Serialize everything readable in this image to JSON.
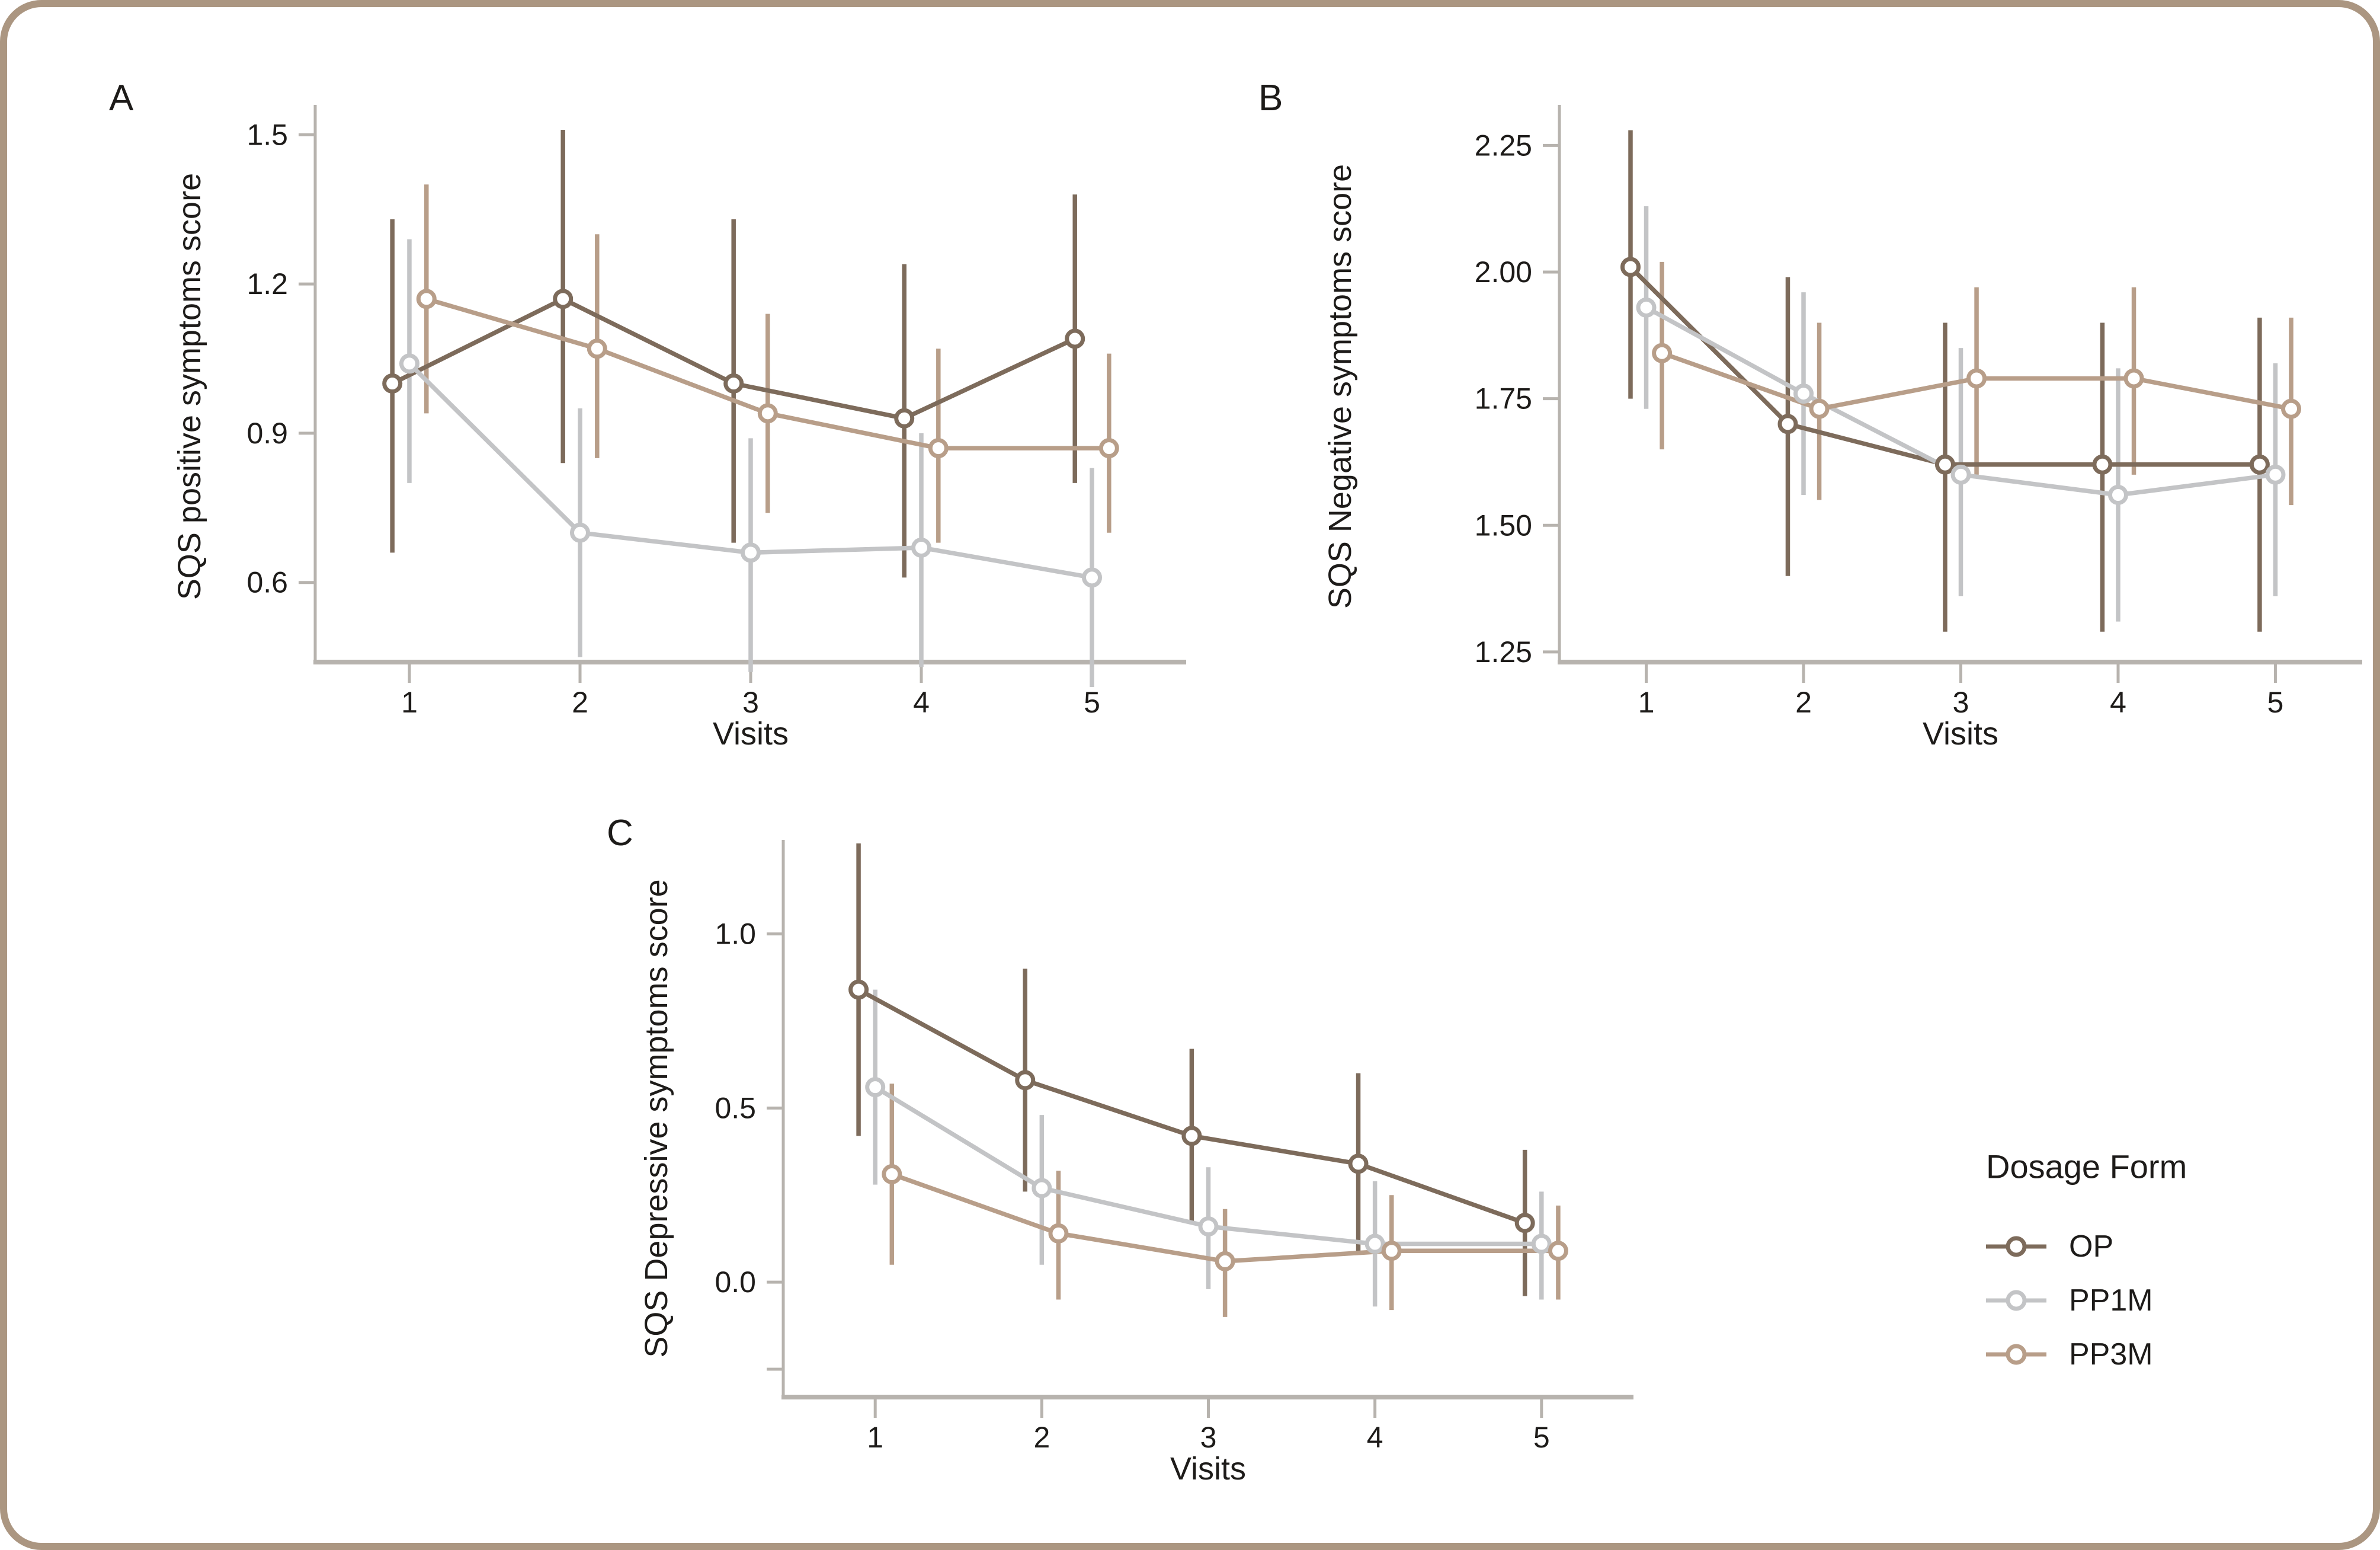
{
  "figure": {
    "border_color": "#ab9681",
    "background": "#ffffff"
  },
  "axis": {
    "line_color": "#b7b3ae",
    "text_color": "#1d1b19"
  },
  "legend": {
    "title": "Dosage Form",
    "position": "right-bottom",
    "items": [
      {
        "label": "OP",
        "color": "#7d6b5b",
        "marker": "open-circle"
      },
      {
        "label": "PP1M",
        "color": "#c3c4c6",
        "marker": "open-circle"
      },
      {
        "label": "PP3M",
        "color": "#b89e89",
        "marker": "open-circle"
      }
    ]
  },
  "chart_data": [
    {
      "type": "line",
      "panel_letter": "A",
      "ylabel": "SQS positive symptoms score",
      "xlabel": "Visits",
      "x": [
        1,
        2,
        3,
        4,
        5
      ],
      "xticklabels": [
        "1",
        "2",
        "3",
        "4",
        "5"
      ],
      "ylim": [
        0.44,
        1.56
      ],
      "yticks": [
        {
          "v": 1.5,
          "label": "1.5"
        },
        {
          "v": 1.2,
          "label": "1.2"
        },
        {
          "v": 0.9,
          "label": "0.9"
        },
        {
          "v": 0.6,
          "label": "0.6"
        }
      ],
      "grid": false,
      "error_bars": true,
      "series": [
        {
          "name": "OP",
          "mean": [
            1.0,
            1.17,
            1.0,
            0.93,
            1.09
          ],
          "lower": [
            0.66,
            0.84,
            0.68,
            0.61,
            0.8
          ],
          "upper": [
            1.33,
            1.51,
            1.33,
            1.24,
            1.38
          ]
        },
        {
          "name": "PP1M",
          "mean": [
            1.04,
            0.7,
            0.66,
            0.67,
            0.61
          ],
          "lower": [
            0.8,
            0.45,
            0.42,
            0.43,
            0.39
          ],
          "upper": [
            1.29,
            0.95,
            0.89,
            0.9,
            0.83
          ]
        },
        {
          "name": "PP3M",
          "mean": [
            1.17,
            1.07,
            0.94,
            0.87,
            0.87
          ],
          "lower": [
            0.94,
            0.85,
            0.74,
            0.68,
            0.7
          ],
          "upper": [
            1.4,
            1.3,
            1.14,
            1.07,
            1.06
          ]
        }
      ]
    },
    {
      "type": "line",
      "panel_letter": "B",
      "ylabel": "SQS Negative symptoms score",
      "xlabel": "Visits",
      "x": [
        1,
        2,
        3,
        4,
        5
      ],
      "xticklabels": [
        "1",
        "2",
        "3",
        "4",
        "5"
      ],
      "ylim": [
        1.23,
        2.33
      ],
      "yticks": [
        {
          "v": 2.25,
          "label": "2.25"
        },
        {
          "v": 2.0,
          "label": "2.00"
        },
        {
          "v": 1.75,
          "label": "1.75"
        },
        {
          "v": 1.5,
          "label": "1.50"
        },
        {
          "v": 1.25,
          "label": "1.25"
        }
      ],
      "grid": false,
      "error_bars": true,
      "series": [
        {
          "name": "OP",
          "mean": [
            2.01,
            1.7,
            1.62,
            1.62,
            1.62
          ],
          "lower": [
            1.75,
            1.4,
            1.29,
            1.29,
            1.29
          ],
          "upper": [
            2.28,
            1.99,
            1.9,
            1.9,
            1.91
          ]
        },
        {
          "name": "PP1M",
          "mean": [
            1.93,
            1.76,
            1.6,
            1.56,
            1.6
          ],
          "lower": [
            1.73,
            1.56,
            1.36,
            1.31,
            1.36
          ],
          "upper": [
            2.13,
            1.96,
            1.85,
            1.81,
            1.82
          ]
        },
        {
          "name": "PP3M",
          "mean": [
            1.84,
            1.73,
            1.79,
            1.79,
            1.73
          ],
          "lower": [
            1.65,
            1.55,
            1.6,
            1.6,
            1.54
          ],
          "upper": [
            2.02,
            1.9,
            1.97,
            1.97,
            1.91
          ]
        }
      ]
    },
    {
      "type": "line",
      "panel_letter": "C",
      "ylabel": "SQS Depressive symptoms score",
      "xlabel": "Visits",
      "x": [
        1,
        2,
        3,
        4,
        5
      ],
      "xticklabels": [
        "1",
        "2",
        "3",
        "4",
        "5"
      ],
      "ylim": [
        -0.33,
        1.27
      ],
      "yticks": [
        {
          "v": 1.0,
          "label": "1.0"
        },
        {
          "v": 0.5,
          "label": "0.5"
        },
        {
          "v": 0.0,
          "label": "0.0"
        },
        {
          "v": -0.25,
          "label": ""
        }
      ],
      "grid": false,
      "error_bars": true,
      "series": [
        {
          "name": "OP",
          "mean": [
            0.84,
            0.58,
            0.42,
            0.34,
            0.17
          ],
          "lower": [
            0.42,
            0.26,
            0.17,
            0.08,
            -0.04
          ],
          "upper": [
            1.26,
            0.9,
            0.67,
            0.6,
            0.38
          ]
        },
        {
          "name": "PP1M",
          "mean": [
            0.56,
            0.27,
            0.16,
            0.11,
            0.11
          ],
          "lower": [
            0.28,
            0.05,
            -0.02,
            -0.07,
            -0.05
          ],
          "upper": [
            0.84,
            0.48,
            0.33,
            0.29,
            0.26
          ]
        },
        {
          "name": "PP3M",
          "mean": [
            0.31,
            0.14,
            0.06,
            0.09,
            0.09
          ],
          "lower": [
            0.05,
            -0.05,
            -0.1,
            -0.08,
            -0.05
          ],
          "upper": [
            0.57,
            0.32,
            0.21,
            0.25,
            0.22
          ]
        }
      ]
    }
  ]
}
